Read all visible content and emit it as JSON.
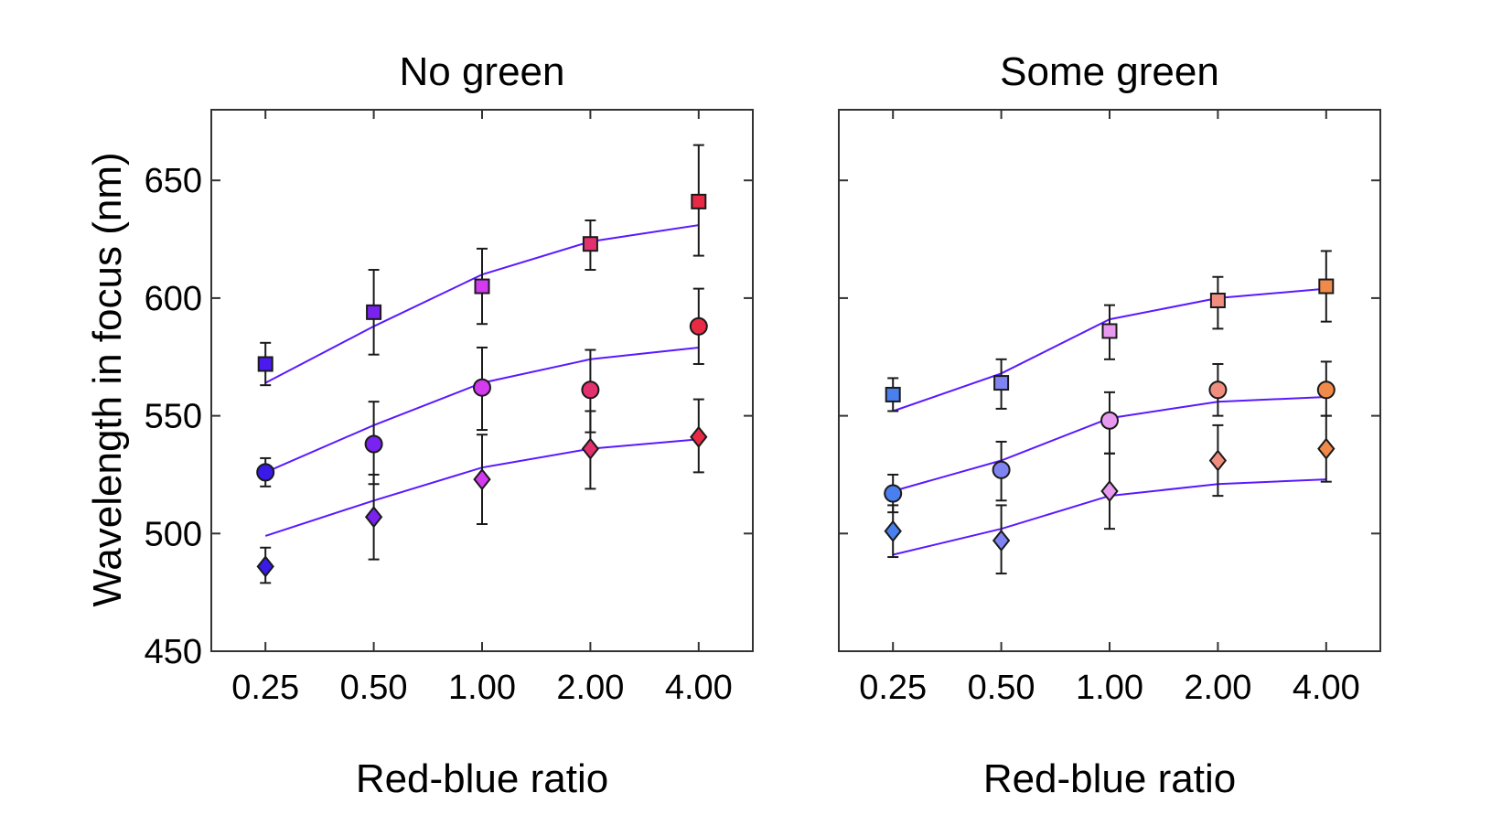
{
  "chart_data": [
    {
      "type": "scatter",
      "title": "No green",
      "xlabel": "Red-blue ratio",
      "ylabel": "Wavelength in focus (nm)",
      "ylim": [
        450,
        680
      ],
      "yticks": [
        450,
        500,
        550,
        600,
        650
      ],
      "ytick_labels": [
        "450",
        "500",
        "550",
        "600",
        "650"
      ],
      "show_y_tick_labels": true,
      "categories": [
        "0.25",
        "0.50",
        "1.00",
        "2.00",
        "4.00"
      ],
      "series": [
        {
          "name": "square",
          "marker": "square",
          "values": [
            572,
            594,
            605,
            623,
            641
          ],
          "err_low": [
            563,
            576,
            589,
            612,
            618
          ],
          "err_high": [
            581,
            612,
            621,
            633,
            665
          ],
          "fit": [
            564,
            588,
            610,
            624,
            631
          ],
          "colors": [
            "#4a1aef",
            "#7a22f0",
            "#d43af0",
            "#e3306e",
            "#e82a44"
          ]
        },
        {
          "name": "circle",
          "marker": "circle",
          "values": [
            526,
            538,
            562,
            561,
            588
          ],
          "err_low": [
            520,
            521,
            544,
            543,
            572
          ],
          "err_high": [
            532,
            556,
            579,
            578,
            604
          ],
          "fit": [
            526,
            546,
            564,
            574,
            579
          ],
          "colors": [
            "#3a1ae8",
            "#7a22f0",
            "#d43af0",
            "#e3306e",
            "#e82a44"
          ]
        },
        {
          "name": "diamond",
          "marker": "diamond",
          "values": [
            486,
            507,
            523,
            536,
            541
          ],
          "err_low": [
            479,
            489,
            504,
            519,
            526
          ],
          "err_high": [
            494,
            525,
            542,
            552,
            557
          ],
          "fit": [
            499,
            514,
            528,
            536,
            540
          ],
          "colors": [
            "#3a1ae8",
            "#7a22f0",
            "#d43af0",
            "#e3306e",
            "#e82a44"
          ]
        }
      ]
    },
    {
      "type": "scatter",
      "title": "Some green",
      "xlabel": "Red-blue ratio",
      "ylabel": "",
      "ylim": [
        450,
        680
      ],
      "yticks": [
        450,
        500,
        550,
        600,
        650
      ],
      "ytick_labels": [],
      "show_y_tick_labels": false,
      "categories": [
        "0.25",
        "0.50",
        "1.00",
        "2.00",
        "4.00"
      ],
      "series": [
        {
          "name": "square",
          "marker": "square",
          "values": [
            559,
            564,
            586,
            599,
            605
          ],
          "err_low": [
            552,
            553,
            574,
            587,
            590
          ],
          "err_high": [
            566,
            574,
            597,
            609,
            620
          ],
          "fit": [
            552,
            568,
            591,
            600,
            604
          ],
          "colors": [
            "#4a7fef",
            "#7f84f2",
            "#e89af0",
            "#f08d7f",
            "#f08a4a"
          ]
        },
        {
          "name": "circle",
          "marker": "circle",
          "values": [
            517,
            527,
            548,
            561,
            561
          ],
          "err_low": [
            509,
            514,
            534,
            550,
            550
          ],
          "err_high": [
            525,
            539,
            560,
            572,
            573
          ],
          "fit": [
            518,
            531,
            549,
            556,
            558
          ],
          "colors": [
            "#4a7fef",
            "#7f84f2",
            "#e89af0",
            "#f08d7f",
            "#f08a4a"
          ]
        },
        {
          "name": "diamond",
          "marker": "diamond",
          "values": [
            501,
            497,
            518,
            531,
            536
          ],
          "err_low": [
            490,
            483,
            502,
            516,
            522
          ],
          "err_high": [
            512,
            512,
            534,
            546,
            550
          ],
          "fit": [
            491,
            502,
            516,
            521,
            523
          ],
          "colors": [
            "#4a7fef",
            "#7f84f2",
            "#e89af0",
            "#f08d7f",
            "#f08a4a"
          ]
        }
      ]
    }
  ]
}
